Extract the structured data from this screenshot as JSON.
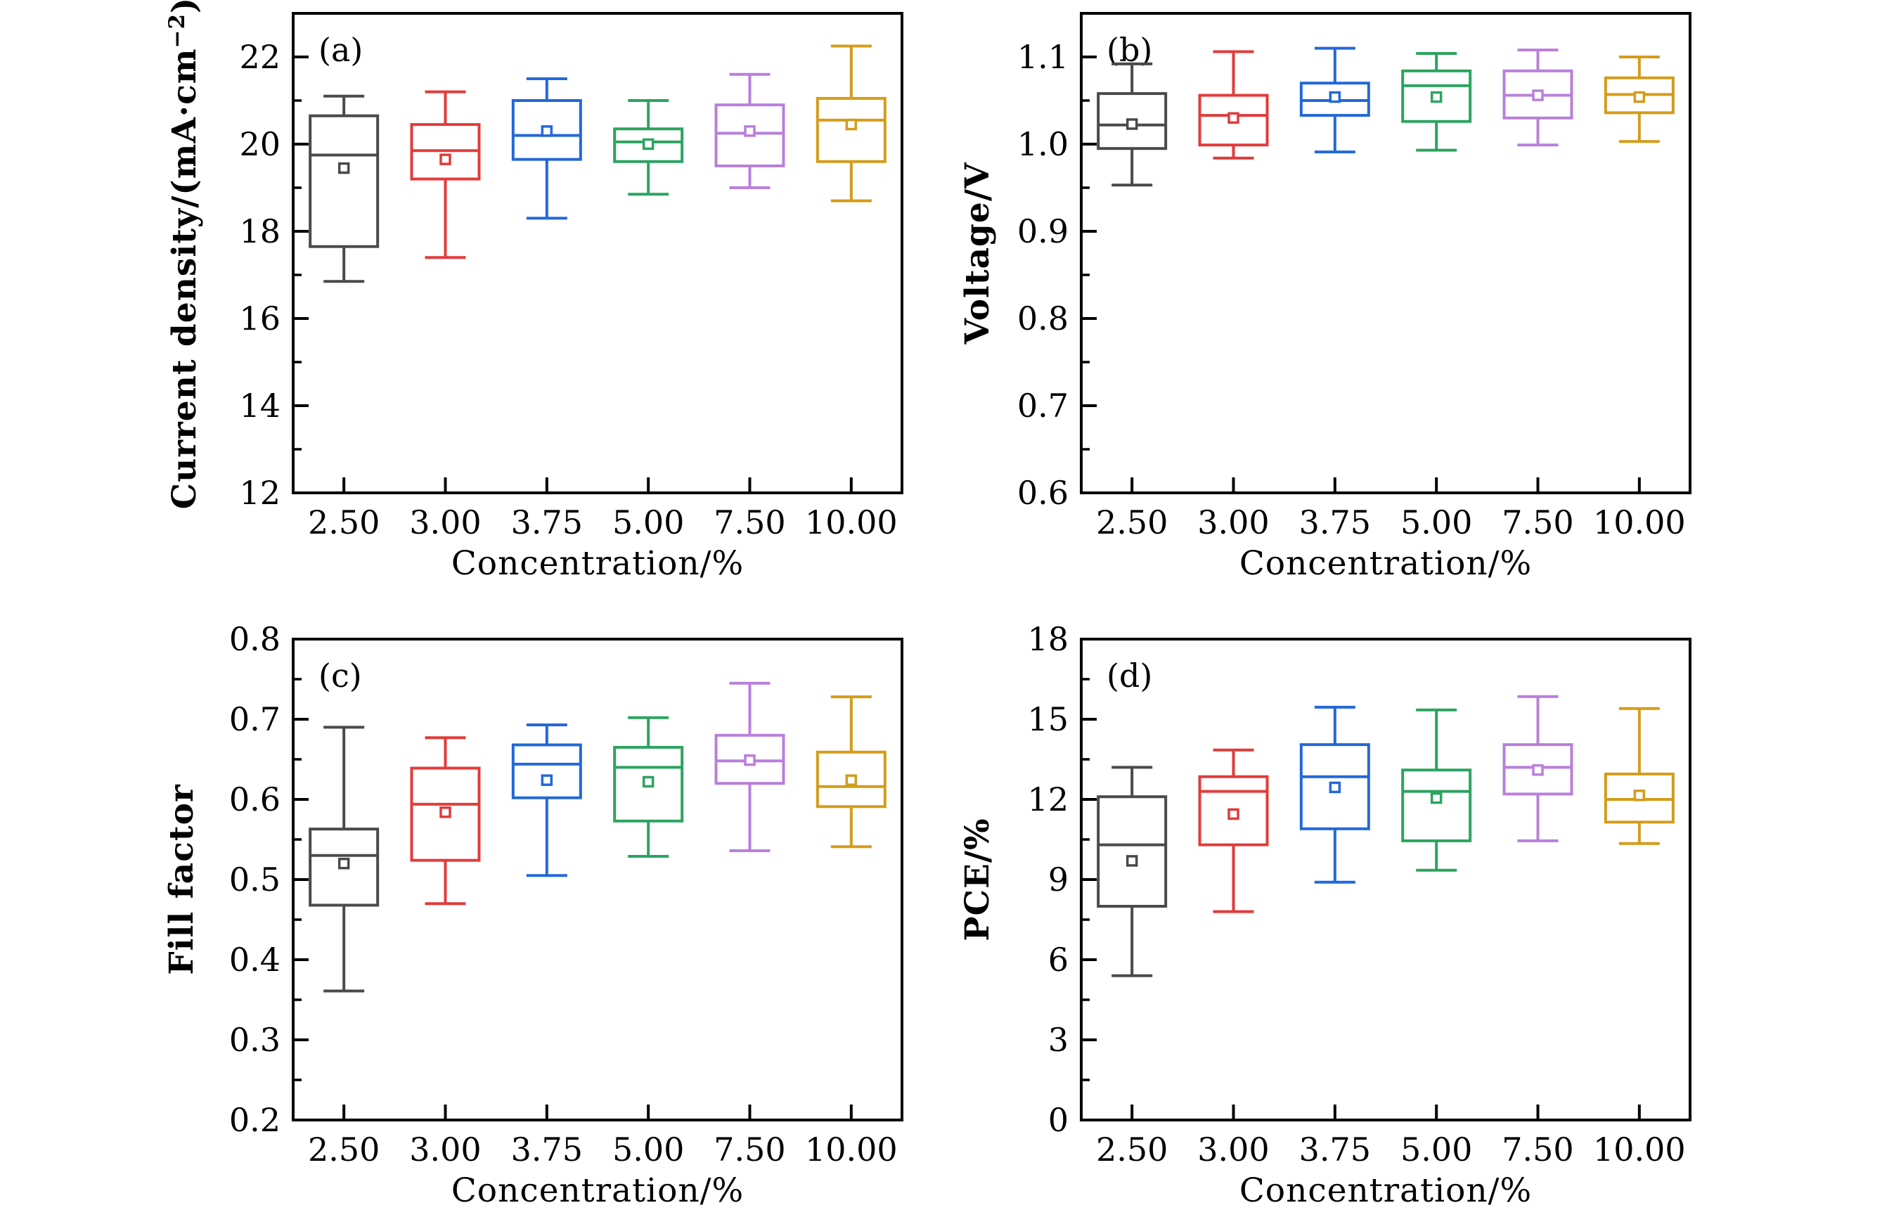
{
  "figure": {
    "background": "#ffffff",
    "frame_color": "#000000",
    "series_colors": {
      "black": "#4a4a4a",
      "red": "#e23b3b",
      "blue": "#2368d9",
      "green": "#2ca460",
      "purple": "#b97fdb",
      "gold": "#d49c1a"
    }
  },
  "chart_data": [
    {
      "id": "a",
      "type": "box",
      "panel_label": "(a)",
      "xlabel": "Concentration/%",
      "ylabel_parts": [
        {
          "t": "Current density/(mA·cm"
        },
        {
          "t": "−2",
          "sup": true
        },
        {
          "t": ")"
        }
      ],
      "ylim": [
        12,
        23
      ],
      "yticks": [
        12,
        14,
        16,
        18,
        20,
        22
      ],
      "ytick_labels": [
        "12",
        "14",
        "16",
        "18",
        "20",
        "22"
      ],
      "minor_step": 1,
      "categories": [
        "2.50",
        "3.00",
        "3.75",
        "5.00",
        "7.50",
        "10.00"
      ],
      "series": [
        {
          "category": "2.50",
          "color": "black",
          "low": 16.85,
          "q1": 17.65,
          "median": 19.75,
          "mean": 19.45,
          "q3": 20.65,
          "high": 21.1
        },
        {
          "category": "3.00",
          "color": "red",
          "low": 17.4,
          "q1": 19.2,
          "median": 19.85,
          "mean": 19.65,
          "q3": 20.45,
          "high": 21.2
        },
        {
          "category": "3.75",
          "color": "blue",
          "low": 18.3,
          "q1": 19.65,
          "median": 20.2,
          "mean": 20.3,
          "q3": 21.0,
          "high": 21.5
        },
        {
          "category": "5.00",
          "color": "green",
          "low": 18.85,
          "q1": 19.6,
          "median": 20.05,
          "mean": 20.0,
          "q3": 20.35,
          "high": 21.0
        },
        {
          "category": "7.50",
          "color": "purple",
          "low": 19.0,
          "q1": 19.5,
          "median": 20.25,
          "mean": 20.3,
          "q3": 20.9,
          "high": 21.6
        },
        {
          "category": "10.00",
          "color": "gold",
          "low": 18.7,
          "q1": 19.6,
          "median": 20.55,
          "mean": 20.45,
          "q3": 21.05,
          "high": 22.25
        }
      ]
    },
    {
      "id": "b",
      "type": "box",
      "panel_label": "(b)",
      "xlabel": "Concentration/%",
      "ylabel_parts": [
        {
          "t": "Voltage/V"
        }
      ],
      "ylim": [
        0.6,
        1.15
      ],
      "yticks": [
        0.6,
        0.7,
        0.8,
        0.9,
        1.0,
        1.1
      ],
      "ytick_labels": [
        "0.6",
        "0.7",
        "0.8",
        "0.9",
        "1.0",
        "1.1"
      ],
      "minor_step": 0.05,
      "categories": [
        "2.50",
        "3.00",
        "3.75",
        "5.00",
        "7.50",
        "10.00"
      ],
      "series": [
        {
          "category": "2.50",
          "color": "black",
          "low": 0.953,
          "q1": 0.995,
          "median": 1.022,
          "mean": 1.023,
          "q3": 1.058,
          "high": 1.092
        },
        {
          "category": "3.00",
          "color": "red",
          "low": 0.984,
          "q1": 0.999,
          "median": 1.033,
          "mean": 1.03,
          "q3": 1.056,
          "high": 1.106
        },
        {
          "category": "3.75",
          "color": "blue",
          "low": 0.991,
          "q1": 1.033,
          "median": 1.05,
          "mean": 1.054,
          "q3": 1.07,
          "high": 1.11
        },
        {
          "category": "5.00",
          "color": "green",
          "low": 0.993,
          "q1": 1.026,
          "median": 1.067,
          "mean": 1.054,
          "q3": 1.084,
          "high": 1.104
        },
        {
          "category": "7.50",
          "color": "purple",
          "low": 0.999,
          "q1": 1.03,
          "median": 1.056,
          "mean": 1.056,
          "q3": 1.084,
          "high": 1.108
        },
        {
          "category": "10.00",
          "color": "gold",
          "low": 1.003,
          "q1": 1.036,
          "median": 1.057,
          "mean": 1.054,
          "q3": 1.076,
          "high": 1.1
        }
      ]
    },
    {
      "id": "c",
      "type": "box",
      "panel_label": "(c)",
      "xlabel": "Concentration/%",
      "ylabel_parts": [
        {
          "t": "Fill factor"
        }
      ],
      "ylim": [
        0.2,
        0.8
      ],
      "yticks": [
        0.2,
        0.3,
        0.4,
        0.5,
        0.6,
        0.7,
        0.8
      ],
      "ytick_labels": [
        "0.2",
        "0.3",
        "0.4",
        "0.5",
        "0.6",
        "0.7",
        "0.8"
      ],
      "minor_step": 0.05,
      "categories": [
        "2.50",
        "3.00",
        "3.75",
        "5.00",
        "7.50",
        "10.00"
      ],
      "series": [
        {
          "category": "2.50",
          "color": "black",
          "low": 0.361,
          "q1": 0.468,
          "median": 0.53,
          "mean": 0.52,
          "q3": 0.563,
          "high": 0.69
        },
        {
          "category": "3.00",
          "color": "red",
          "low": 0.47,
          "q1": 0.524,
          "median": 0.594,
          "mean": 0.584,
          "q3": 0.639,
          "high": 0.677
        },
        {
          "category": "3.75",
          "color": "blue",
          "low": 0.505,
          "q1": 0.602,
          "median": 0.644,
          "mean": 0.624,
          "q3": 0.668,
          "high": 0.693
        },
        {
          "category": "5.00",
          "color": "green",
          "low": 0.529,
          "q1": 0.573,
          "median": 0.64,
          "mean": 0.622,
          "q3": 0.665,
          "high": 0.702
        },
        {
          "category": "7.50",
          "color": "purple",
          "low": 0.536,
          "q1": 0.62,
          "median": 0.648,
          "mean": 0.649,
          "q3": 0.68,
          "high": 0.745
        },
        {
          "category": "10.00",
          "color": "gold",
          "low": 0.541,
          "q1": 0.591,
          "median": 0.616,
          "mean": 0.624,
          "q3": 0.659,
          "high": 0.728
        }
      ]
    },
    {
      "id": "d",
      "type": "box",
      "panel_label": "(d)",
      "xlabel": "Concentration/%",
      "ylabel_parts": [
        {
          "t": "PCE/%"
        }
      ],
      "ylim": [
        0,
        18
      ],
      "yticks": [
        0,
        3,
        6,
        9,
        12,
        15,
        18
      ],
      "ytick_labels": [
        "0",
        "3",
        "6",
        "9",
        "12",
        "15",
        "18"
      ],
      "minor_step": 1.5,
      "categories": [
        "2.50",
        "3.00",
        "3.75",
        "5.00",
        "7.50",
        "10.00"
      ],
      "series": [
        {
          "category": "2.50",
          "color": "black",
          "low": 5.4,
          "q1": 8.0,
          "median": 10.3,
          "mean": 9.7,
          "q3": 12.1,
          "high": 13.2
        },
        {
          "category": "3.00",
          "color": "red",
          "low": 7.8,
          "q1": 10.3,
          "median": 12.3,
          "mean": 11.45,
          "q3": 12.85,
          "high": 13.85
        },
        {
          "category": "3.75",
          "color": "blue",
          "low": 8.9,
          "q1": 10.9,
          "median": 12.85,
          "mean": 12.45,
          "q3": 14.05,
          "high": 15.45
        },
        {
          "category": "5.00",
          "color": "green",
          "low": 9.35,
          "q1": 10.45,
          "median": 12.3,
          "mean": 12.05,
          "q3": 13.1,
          "high": 15.35
        },
        {
          "category": "7.50",
          "color": "purple",
          "low": 10.45,
          "q1": 12.2,
          "median": 13.2,
          "mean": 13.1,
          "q3": 14.05,
          "high": 15.85
        },
        {
          "category": "10.00",
          "color": "gold",
          "low": 10.35,
          "q1": 11.15,
          "median": 12.0,
          "mean": 12.15,
          "q3": 12.95,
          "high": 15.4
        }
      ]
    }
  ]
}
